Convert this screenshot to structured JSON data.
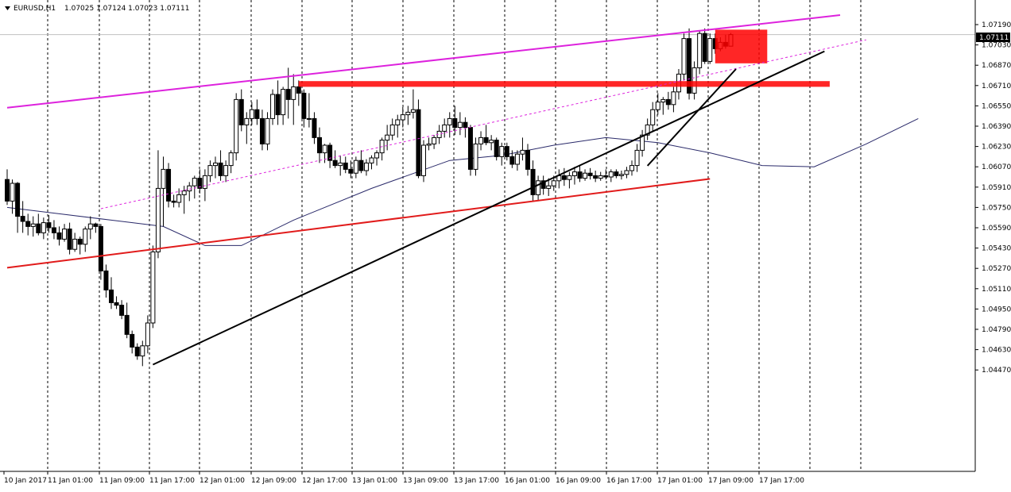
{
  "header": {
    "symbol": "EURUSD,H1",
    "ohlc": "1.07025 1.07124 1.07023 1.07111"
  },
  "current_price": "1.07111",
  "colors": {
    "background": "#ffffff",
    "grid": "#000000",
    "bull_candle": "#ffffff",
    "bear_candle": "#000000",
    "magenta_line": "#dd22dd",
    "red_line": "#e11b1b",
    "red_zone": "#ff0000",
    "moving_average": "#2a2a6a",
    "trend_black": "#000000"
  },
  "chart_data": {
    "type": "line",
    "price_axis": {
      "ticks": [
        "1.07190",
        "1.07030",
        "1.06870",
        "1.06710",
        "1.06550",
        "1.06390",
        "1.06230",
        "1.06070",
        "1.05910",
        "1.05750",
        "1.05590",
        "1.05430",
        "1.05270",
        "1.05110",
        "1.04950",
        "1.04790",
        "1.04630",
        "1.04470"
      ]
    },
    "time_axis": {
      "ticks": [
        "10 Jan 2017",
        "11 Jan 01:00",
        "11 Jan 09:00",
        "11 Jan 17:00",
        "12 Jan 01:00",
        "12 Jan 09:00",
        "12 Jan 17:00",
        "13 Jan 01:00",
        "13 Jan 09:00",
        "13 Jan 17:00",
        "16 Jan 01:00",
        "16 Jan 09:00",
        "16 Jan 17:00",
        "17 Jan 01:00",
        "17 Jan 09:00",
        "17 Jan 17:00"
      ]
    },
    "moving_average": [
      [
        0,
        1.0575
      ],
      [
        10,
        1.057
      ],
      [
        20,
        1.0565
      ],
      [
        30,
        1.056
      ],
      [
        38,
        1.0545
      ],
      [
        45,
        1.0545
      ],
      [
        55,
        1.0565
      ],
      [
        70,
        1.059
      ],
      [
        85,
        1.0612
      ],
      [
        95,
        1.0616
      ],
      [
        105,
        1.0624
      ],
      [
        115,
        1.063
      ],
      [
        125,
        1.0626
      ],
      [
        135,
        1.0618
      ],
      [
        145,
        1.0608
      ],
      [
        155,
        1.0607
      ],
      [
        165,
        1.0625
      ],
      [
        175,
        1.0645
      ]
    ],
    "trend_lines": [
      {
        "x1": 0,
        "y1": 1.05275,
        "x2": 135,
        "y2": 1.05975
      },
      {
        "x1": 0,
        "y1": 1.06535,
        "x2": 160,
        "y2": 1.07265
      },
      {
        "x1": 18,
        "y1": 1.0574,
        "x2": 165,
        "y2": 1.0707
      },
      {
        "x1": 28,
        "y1": 1.04512,
        "x2": 157,
        "y2": 1.0698
      },
      {
        "x1": 123,
        "y1": 1.06078,
        "x2": 140,
        "y2": 1.0684
      }
    ],
    "zones": [
      {
        "x1": 56,
        "x2": 158,
        "y_top": 1.06745,
        "y_bottom": 1.067
      },
      {
        "x1": 136,
        "x2": 146,
        "y_top": 1.0715,
        "y_bottom": 1.06885
      }
    ],
    "candles": [
      [
        1.0597,
        1.0605,
        1.0577,
        1.058
      ],
      [
        1.058,
        1.0597,
        1.057,
        1.0594
      ],
      [
        1.0594,
        1.0595,
        1.0555,
        1.0568
      ],
      [
        1.0568,
        1.058,
        1.0555,
        1.0564
      ],
      [
        1.0564,
        1.057,
        1.0553,
        1.056
      ],
      [
        1.056,
        1.0568,
        1.0552,
        1.0562
      ],
      [
        1.0562,
        1.057,
        1.0553,
        1.0555
      ],
      [
        1.0555,
        1.0567,
        1.055,
        1.0563
      ],
      [
        1.0563,
        1.0569,
        1.0555,
        1.0559
      ],
      [
        1.0559,
        1.0565,
        1.055,
        1.0555
      ],
      [
        1.0555,
        1.056,
        1.0545,
        1.055
      ],
      [
        1.055,
        1.0562,
        1.0548,
        1.0558
      ],
      [
        1.0558,
        1.0563,
        1.0538,
        1.0542
      ],
      [
        1.0542,
        1.0555,
        1.054,
        1.055
      ],
      [
        1.055,
        1.0552,
        1.0538,
        1.0546
      ],
      [
        1.0546,
        1.056,
        1.054,
        1.0558
      ],
      [
        1.0558,
        1.0568,
        1.055,
        1.0562
      ],
      [
        1.0562,
        1.0563,
        1.0555,
        1.056
      ],
      [
        1.056,
        1.0562,
        1.0518,
        1.0525
      ],
      [
        1.0525,
        1.053,
        1.0504,
        1.051
      ],
      [
        1.051,
        1.052,
        1.0495,
        1.05
      ],
      [
        1.05,
        1.0505,
        1.0495,
        1.0498
      ],
      [
        1.0498,
        1.0502,
        1.0487,
        1.049
      ],
      [
        1.049,
        1.05,
        1.0472,
        1.0475
      ],
      [
        1.0475,
        1.0478,
        1.046,
        1.0465
      ],
      [
        1.0465,
        1.0468,
        1.0455,
        1.0458
      ],
      [
        1.0458,
        1.047,
        1.045,
        1.0466
      ],
      [
        1.0466,
        1.049,
        1.046,
        1.0484
      ],
      [
        1.0484,
        1.0545,
        1.048,
        1.054
      ],
      [
        1.054,
        1.062,
        1.0535,
        1.059
      ],
      [
        1.059,
        1.0615,
        1.056,
        1.0605
      ],
      [
        1.0605,
        1.061,
        1.0575,
        1.058
      ],
      [
        1.058,
        1.0585,
        1.0575,
        1.0579
      ],
      [
        1.0579,
        1.059,
        1.0575,
        1.0585
      ],
      [
        1.0585,
        1.0592,
        1.057,
        1.0588
      ],
      [
        1.0588,
        1.0595,
        1.058,
        1.0592
      ],
      [
        1.0592,
        1.06,
        1.0582,
        1.0598
      ],
      [
        1.0598,
        1.0605,
        1.0586,
        1.059
      ],
      [
        1.059,
        1.0605,
        1.058,
        1.06
      ],
      [
        1.06,
        1.0612,
        1.0595,
        1.0608
      ],
      [
        1.0608,
        1.0615,
        1.0598,
        1.061
      ],
      [
        1.061,
        1.062,
        1.0596,
        1.06
      ],
      [
        1.06,
        1.0612,
        1.0595,
        1.0608
      ],
      [
        1.0608,
        1.062,
        1.0602,
        1.0618
      ],
      [
        1.0618,
        1.0665,
        1.0612,
        1.066
      ],
      [
        1.066,
        1.0668,
        1.0635,
        1.064
      ],
      [
        1.064,
        1.065,
        1.0625,
        1.0645
      ],
      [
        1.0645,
        1.0658,
        1.064,
        1.0652
      ],
      [
        1.0652,
        1.066,
        1.064,
        1.0645
      ],
      [
        1.0645,
        1.0652,
        1.062,
        1.0625
      ],
      [
        1.0625,
        1.065,
        1.062,
        1.0645
      ],
      [
        1.0645,
        1.0668,
        1.064,
        1.0664
      ],
      [
        1.0664,
        1.0675,
        1.064,
        1.0648
      ],
      [
        1.0648,
        1.067,
        1.064,
        1.0668
      ],
      [
        1.0668,
        1.0685,
        1.0645,
        1.066
      ],
      [
        1.066,
        1.068,
        1.064,
        1.067
      ],
      [
        1.067,
        1.0675,
        1.0655,
        1.0665
      ],
      [
        1.0665,
        1.0668,
        1.0638,
        1.0645
      ],
      [
        1.0645,
        1.0665,
        1.0638,
        1.0645
      ],
      [
        1.0645,
        1.065,
        1.0625,
        1.063
      ],
      [
        1.063,
        1.0638,
        1.061,
        1.0618
      ],
      [
        1.0618,
        1.0625,
        1.061,
        1.0624
      ],
      [
        1.0624,
        1.0626,
        1.0606,
        1.0612
      ],
      [
        1.0612,
        1.062,
        1.0606,
        1.0608
      ],
      [
        1.0608,
        1.0616,
        1.06,
        1.061
      ],
      [
        1.061,
        1.0615,
        1.0602,
        1.0605
      ],
      [
        1.0605,
        1.0612,
        1.0598,
        1.0602
      ],
      [
        1.0602,
        1.0615,
        1.0598,
        1.0612
      ],
      [
        1.0612,
        1.062,
        1.0602,
        1.0604
      ],
      [
        1.0604,
        1.0613,
        1.06,
        1.061
      ],
      [
        1.061,
        1.0616,
        1.0605,
        1.0614
      ],
      [
        1.0614,
        1.062,
        1.0608,
        1.0618
      ],
      [
        1.0618,
        1.063,
        1.0612,
        1.0628
      ],
      [
        1.0628,
        1.064,
        1.062,
        1.0632
      ],
      [
        1.0632,
        1.0645,
        1.0628,
        1.064
      ],
      [
        1.064,
        1.0648,
        1.063,
        1.0644
      ],
      [
        1.0644,
        1.0654,
        1.0638,
        1.0648
      ],
      [
        1.0648,
        1.0655,
        1.064,
        1.065
      ],
      [
        1.065,
        1.0668,
        1.0645,
        1.0652
      ],
      [
        1.0652,
        1.066,
        1.0598,
        1.06
      ],
      [
        1.06,
        1.0628,
        1.0595,
        1.0624
      ],
      [
        1.0624,
        1.063,
        1.062,
        1.0625
      ],
      [
        1.0625,
        1.0632,
        1.0621,
        1.063
      ],
      [
        1.063,
        1.064,
        1.0625,
        1.0635
      ],
      [
        1.0635,
        1.0645,
        1.063,
        1.064
      ],
      [
        1.064,
        1.065,
        1.063,
        1.0645
      ],
      [
        1.0645,
        1.0655,
        1.0632,
        1.0638
      ],
      [
        1.0638,
        1.065,
        1.0632,
        1.0642
      ],
      [
        1.0642,
        1.0646,
        1.063,
        1.0638
      ],
      [
        1.0638,
        1.064,
        1.06,
        1.0605
      ],
      [
        1.0605,
        1.063,
        1.06,
        1.0625
      ],
      [
        1.0625,
        1.0635,
        1.062,
        1.063
      ],
      [
        1.063,
        1.064,
        1.0624,
        1.0626
      ],
      [
        1.0626,
        1.0632,
        1.062,
        1.0628
      ],
      [
        1.0628,
        1.063,
        1.0612,
        1.0615
      ],
      [
        1.0615,
        1.0626,
        1.0608,
        1.0623
      ],
      [
        1.0623,
        1.0626,
        1.0612,
        1.0615
      ],
      [
        1.0615,
        1.062,
        1.0606,
        1.0609
      ],
      [
        1.0609,
        1.062,
        1.0604,
        1.0617
      ],
      [
        1.0617,
        1.063,
        1.0612,
        1.062
      ],
      [
        1.062,
        1.0625,
        1.06,
        1.0605
      ],
      [
        1.0605,
        1.0612,
        1.058,
        1.0585
      ],
      [
        1.0585,
        1.06,
        1.058,
        1.0596
      ],
      [
        1.0596,
        1.06,
        1.0585,
        1.059
      ],
      [
        1.059,
        1.0598,
        1.0584,
        1.0592
      ],
      [
        1.0592,
        1.06,
        1.0588,
        1.0596
      ],
      [
        1.0596,
        1.0605,
        1.059,
        1.06
      ],
      [
        1.06,
        1.0606,
        1.0592,
        1.0597
      ],
      [
        1.0597,
        1.0603,
        1.059,
        1.06
      ],
      [
        1.06,
        1.0607,
        1.0593,
        1.0603
      ],
      [
        1.0603,
        1.0608,
        1.0595,
        1.0598
      ],
      [
        1.0598,
        1.0605,
        1.0596,
        1.0602
      ],
      [
        1.0602,
        1.0606,
        1.0597,
        1.06
      ],
      [
        1.06,
        1.0604,
        1.0595,
        1.0598
      ],
      [
        1.0598,
        1.0603,
        1.0596,
        1.06
      ],
      [
        1.06,
        1.0605,
        1.0597,
        1.0599
      ],
      [
        1.0599,
        1.0605,
        1.0595,
        1.0603
      ],
      [
        1.0603,
        1.0605,
        1.0598,
        1.06
      ],
      [
        1.06,
        1.0604,
        1.0597,
        1.0601
      ],
      [
        1.0601,
        1.0607,
        1.0598,
        1.0604
      ],
      [
        1.0604,
        1.0612,
        1.06,
        1.0608
      ],
      [
        1.0608,
        1.0625,
        1.0603,
        1.062
      ],
      [
        1.062,
        1.0636,
        1.0615,
        1.0632
      ],
      [
        1.0632,
        1.0645,
        1.0628,
        1.064
      ],
      [
        1.064,
        1.0658,
        1.0635,
        1.0652
      ],
      [
        1.0652,
        1.0665,
        1.0648,
        1.0658
      ],
      [
        1.0658,
        1.0662,
        1.0648,
        1.066
      ],
      [
        1.066,
        1.0666,
        1.0652,
        1.0656
      ],
      [
        1.0656,
        1.067,
        1.065,
        1.0666
      ],
      [
        1.0666,
        1.0684,
        1.066,
        1.068
      ],
      [
        1.068,
        1.0712,
        1.0675,
        1.0708
      ],
      [
        1.0708,
        1.0716,
        1.066,
        1.0665
      ],
      [
        1.0665,
        1.069,
        1.066,
        1.0685
      ],
      [
        1.0685,
        1.0714,
        1.068,
        1.0712
      ],
      [
        1.0712,
        1.0716,
        1.0688,
        1.069
      ],
      [
        1.069,
        1.0712,
        1.0688,
        1.0708
      ],
      [
        1.0708,
        1.0712,
        1.0696,
        1.07
      ],
      [
        1.07,
        1.0709,
        1.0698,
        1.0705
      ],
      [
        1.0705,
        1.0711,
        1.07,
        1.0702
      ],
      [
        1.0702,
        1.07124,
        1.07023,
        1.07111
      ]
    ]
  }
}
